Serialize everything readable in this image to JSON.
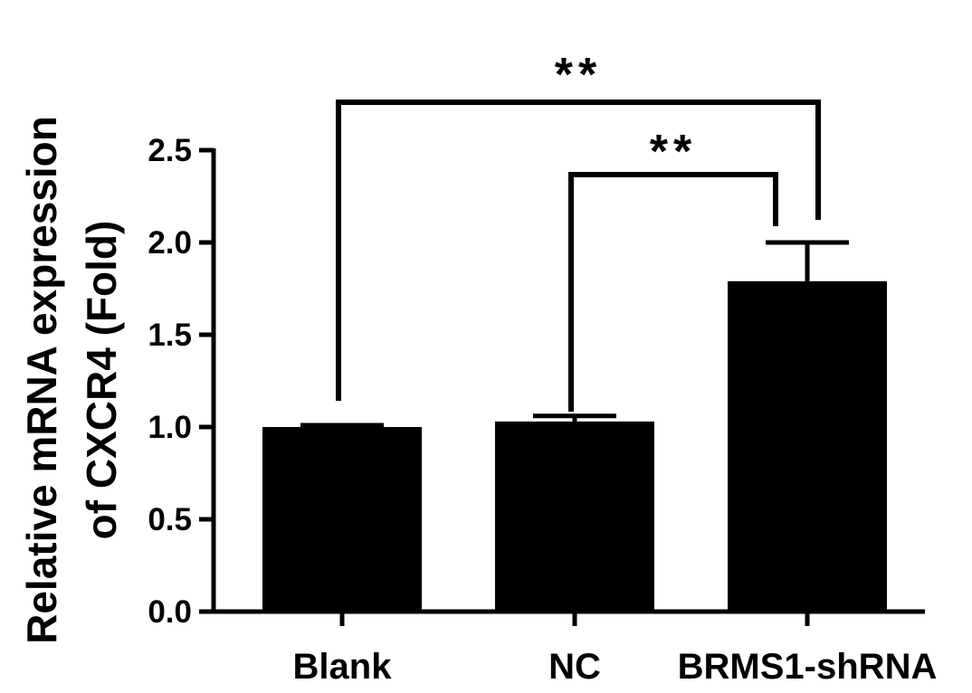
{
  "chart_data": {
    "type": "bar",
    "title": "",
    "xlabel": "",
    "ylabel_lines": [
      "Relative mRNA expression",
      "of CXCR4 (Fold)"
    ],
    "categories": [
      "Blank",
      "NC",
      "BRMS1-shRNA"
    ],
    "values": [
      1.0,
      1.03,
      1.79
    ],
    "error_upper": [
      1.01,
      1.06,
      2.0
    ],
    "ylim": [
      0,
      2.5
    ],
    "yticks": [
      "0.0",
      "0.5",
      "1.0",
      "1.5",
      "2.0",
      "2.5"
    ],
    "grid": false,
    "bar_color": "#000000",
    "significance": [
      {
        "from": "Blank",
        "to": "BRMS1-shRNA",
        "label": "**"
      },
      {
        "from": "NC",
        "to": "BRMS1-shRNA",
        "label": "**"
      }
    ]
  }
}
